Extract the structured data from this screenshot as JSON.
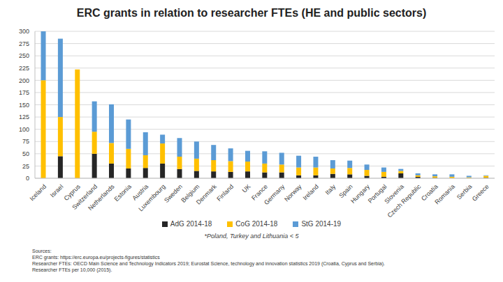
{
  "chart_data": {
    "type": "bar",
    "title": "ERC grants in relation to researcher FTEs (HE and public sectors)",
    "stacked": true,
    "grid": true,
    "legend": "bottom",
    "categories": [
      "Iceland",
      "Israel",
      "Cyprus",
      "Switzerland",
      "Netherlands",
      "Estonia",
      "Austria",
      "Luxembourg",
      "Sweden",
      "Belgium",
      "Denmark",
      "Finland",
      "UK",
      "France",
      "Germany",
      "Norway",
      "Ireland",
      "Italy",
      "Spain",
      "Hungary",
      "Portugal",
      "Slovenia",
      "Czech Republic",
      "Croatia",
      "Romania",
      "Serbia",
      "Greece"
    ],
    "series": [
      {
        "name": "AdG 2014-18",
        "color": "#262626",
        "values": [
          0,
          45,
          0,
          50,
          30,
          20,
          21,
          30,
          19,
          15,
          14,
          13,
          14,
          12,
          12,
          6,
          6,
          9,
          8,
          5,
          3,
          10,
          3,
          1,
          0,
          0,
          1
        ]
      },
      {
        "name": "CoG 2014-18",
        "color": "#ffc000",
        "values": [
          200,
          80,
          222,
          45,
          42,
          40,
          26,
          41,
          25,
          25,
          23,
          22,
          20,
          18,
          16,
          16,
          16,
          11,
          13,
          12,
          10,
          5,
          3,
          3,
          3,
          2,
          4
        ]
      },
      {
        "name": "StG 2014-19",
        "color": "#5b9bd5",
        "values": [
          100,
          160,
          0,
          62,
          79,
          60,
          47,
          18,
          38,
          35,
          31,
          26,
          22,
          25,
          24,
          24,
          22,
          17,
          15,
          11,
          9,
          4,
          4,
          4,
          5,
          3,
          1
        ]
      }
    ],
    "ylim": [
      0,
      300
    ],
    "yticks": [
      0,
      25,
      50,
      75,
      100,
      125,
      150,
      175,
      200,
      225,
      250,
      275,
      300
    ],
    "annotations": [
      "*Poland, Turkey and Lithuania < 5"
    ],
    "sources": [
      "Sources:",
      "ERC grants: https://erc.europa.eu/projects-figures/statistics",
      "Researcher FTEs: OECD Main Science and Technology Indicators 2019; Eurostat Science, technology and innovation statistics 2019 (Croatia, Cyprus and Serbia).",
      "Researcher FTEs per 10,000 (2015)."
    ]
  }
}
